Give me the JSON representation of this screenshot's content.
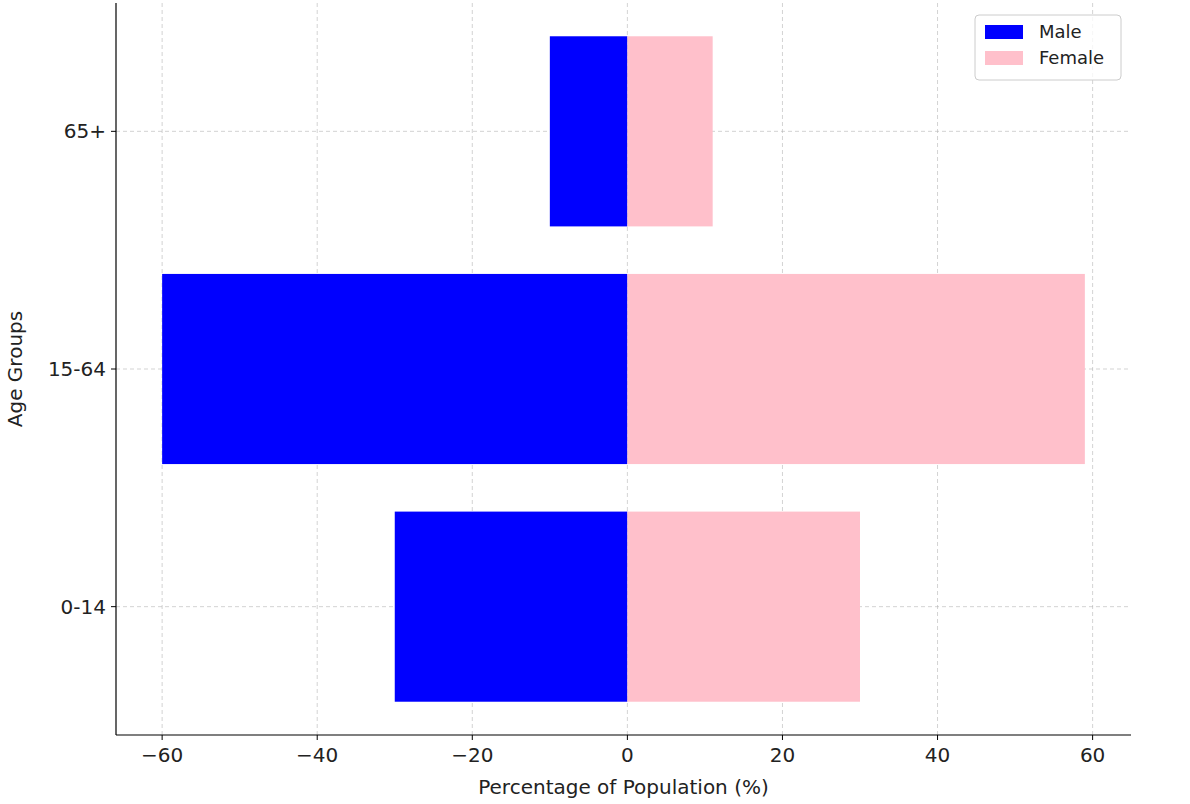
{
  "chart_data": {
    "type": "bar",
    "orientation": "horizontal",
    "x_label": "Percentage of Population (%)",
    "y_label": "Age Groups",
    "categories": [
      "0-14",
      "15-64",
      "65+"
    ],
    "series": [
      {
        "name": "Male",
        "color": "#0000ff",
        "values": [
          -30,
          -60,
          -10
        ]
      },
      {
        "name": "Female",
        "color": "#ffc0cb",
        "values": [
          30,
          59,
          11
        ]
      }
    ],
    "xlim": [
      -65.95,
      64.95
    ],
    "xticks": [
      {
        "value": -60,
        "label": "−60"
      },
      {
        "value": -40,
        "label": "−40"
      },
      {
        "value": -20,
        "label": "−20"
      },
      0,
      20,
      40,
      60
    ],
    "grid": true,
    "legend": "upper right"
  }
}
